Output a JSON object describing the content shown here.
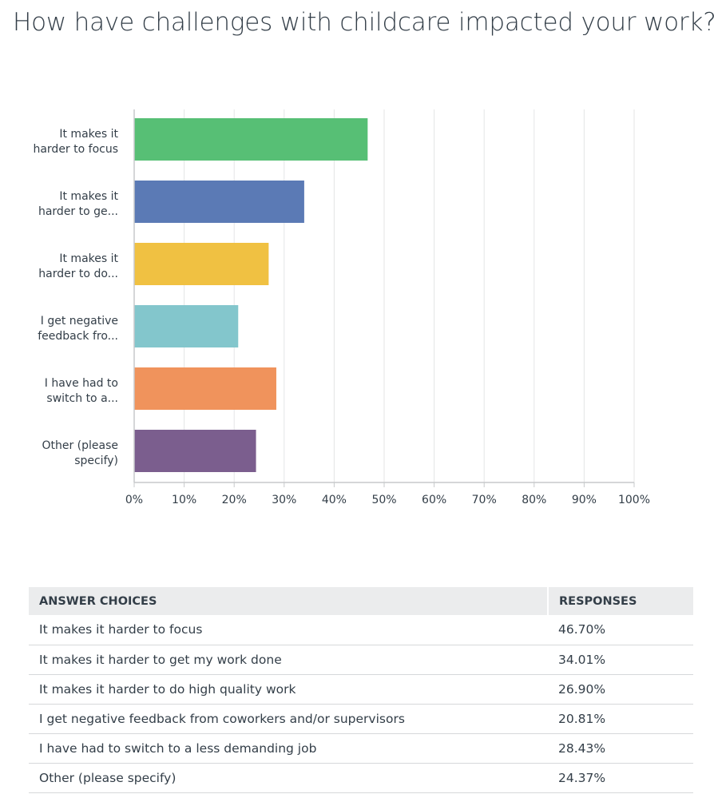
{
  "question": {
    "title": "How have challenges with childcare impacted your work?"
  },
  "chart_data": {
    "type": "bar",
    "orientation": "horizontal",
    "categories": [
      [
        "It makes it",
        "harder to focus"
      ],
      [
        "It makes it",
        "harder to ge..."
      ],
      [
        "It makes it",
        "harder to do..."
      ],
      [
        "I get negative",
        "feedback fro..."
      ],
      [
        "I have had to",
        "switch to a..."
      ],
      [
        "Other (please",
        "specify)"
      ]
    ],
    "values": [
      46.7,
      34.01,
      26.9,
      20.81,
      28.43,
      24.37
    ],
    "colors": [
      "#57bf75",
      "#5b7ab5",
      "#f0c142",
      "#83c6cc",
      "#f0935c",
      "#7b5e8e"
    ],
    "xlim": [
      0,
      100
    ],
    "x_ticks": [
      "0%",
      "10%",
      "20%",
      "30%",
      "40%",
      "50%",
      "60%",
      "70%",
      "80%",
      "90%",
      "100%"
    ],
    "grid": true,
    "gridline_color": "#e4e5e6",
    "axis_color": "#c7c9cb"
  },
  "table": {
    "headers": [
      "ANSWER CHOICES",
      "RESPONSES"
    ],
    "rows": [
      {
        "choice": "It makes it harder to focus",
        "response": "46.70%"
      },
      {
        "choice": "It makes it harder to get my work done",
        "response": "34.01%"
      },
      {
        "choice": "It makes it harder to do high quality work",
        "response": "26.90%"
      },
      {
        "choice": "I get negative feedback from coworkers and/or supervisors",
        "response": "20.81%"
      },
      {
        "choice": "I have had to switch to a less demanding job",
        "response": "28.43%"
      },
      {
        "choice": "Other (please specify)",
        "response": "24.37%"
      }
    ]
  }
}
